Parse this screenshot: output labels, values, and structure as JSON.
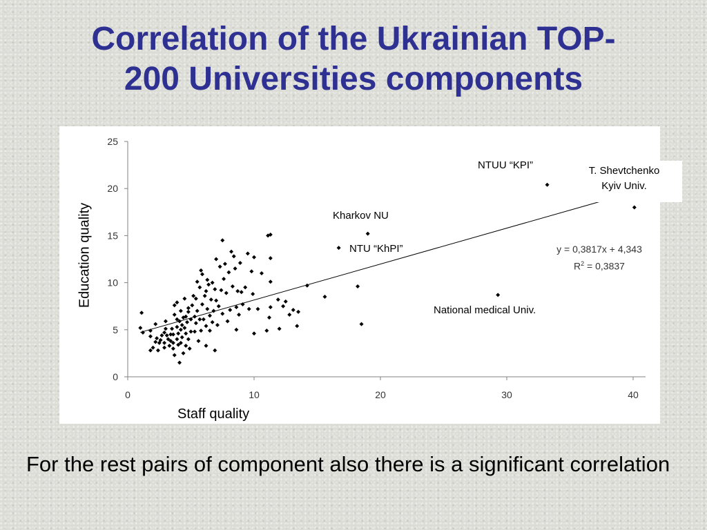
{
  "slide": {
    "title_line1": "Correlation of the Ukrainian TOP-",
    "title_line2": "200 Universities components",
    "footer_text": "For the rest pairs of component also there is a significant correlation"
  },
  "chart_data": {
    "type": "scatter",
    "title": "",
    "xlabel": "Staff quality",
    "ylabel": "Education quality",
    "xlim": [
      0,
      40
    ],
    "ylim": [
      0,
      25
    ],
    "xticks": [
      0,
      10,
      20,
      30,
      40
    ],
    "yticks": [
      0,
      5,
      10,
      15,
      20,
      25
    ],
    "grid": false,
    "point_color": "#000000",
    "trendline": {
      "slope": 0.3817,
      "intercept": 4.343,
      "x_range": [
        1,
        40
      ],
      "equation_text": "y = 0,3817x + 4,343",
      "r2_prefix": "R",
      "r2_sup": "2",
      "r2_value": " = 0,3837"
    },
    "annotations": {
      "kpi": "NTUU “KPI”",
      "shevchenko_line1": "T. Shevtchenko",
      "shevchenko_line2": "Kyiv  Univ.",
      "kharkov": "Kharkov NU",
      "khpi": "NTU “KhPI”",
      "medical": "National medical Univ."
    },
    "points": [
      [
        1.1,
        6.8
      ],
      [
        1.0,
        5.2
      ],
      [
        1.2,
        4.7
      ],
      [
        1.8,
        4.9
      ],
      [
        1.8,
        4.3
      ],
      [
        1.8,
        2.8
      ],
      [
        2.0,
        3.1
      ],
      [
        2.2,
        3.7
      ],
      [
        2.3,
        4.1
      ],
      [
        2.2,
        5.6
      ],
      [
        2.5,
        3.6
      ],
      [
        2.4,
        2.8
      ],
      [
        2.6,
        3.9
      ],
      [
        2.7,
        4.4
      ],
      [
        2.9,
        4.7
      ],
      [
        2.9,
        3.6
      ],
      [
        2.9,
        3.1
      ],
      [
        3.0,
        5.1
      ],
      [
        3.0,
        5.9
      ],
      [
        3.1,
        4.4
      ],
      [
        3.2,
        4.0
      ],
      [
        3.3,
        3.3
      ],
      [
        3.4,
        4.5
      ],
      [
        3.4,
        3.8
      ],
      [
        3.5,
        5.1
      ],
      [
        3.6,
        4.5
      ],
      [
        3.6,
        3.6
      ],
      [
        3.6,
        3.0
      ],
      [
        3.7,
        6.6
      ],
      [
        3.7,
        7.6
      ],
      [
        3.7,
        2.3
      ],
      [
        3.9,
        4.0
      ],
      [
        3.9,
        5.3
      ],
      [
        3.9,
        6.1
      ],
      [
        3.9,
        7.9
      ],
      [
        4.0,
        3.4
      ],
      [
        4.0,
        4.6
      ],
      [
        4.1,
        5.9
      ],
      [
        4.1,
        1.5
      ],
      [
        4.2,
        7.0
      ],
      [
        4.2,
        5.0
      ],
      [
        4.2,
        3.6
      ],
      [
        4.3,
        4.2
      ],
      [
        4.3,
        5.5
      ],
      [
        4.4,
        6.3
      ],
      [
        4.4,
        2.5
      ],
      [
        4.5,
        5.2
      ],
      [
        4.5,
        8.3
      ],
      [
        4.6,
        4.6
      ],
      [
        4.6,
        6.4
      ],
      [
        4.6,
        3.3
      ],
      [
        4.7,
        5.8
      ],
      [
        4.8,
        6.9
      ],
      [
        4.8,
        4.0
      ],
      [
        4.8,
        7.3
      ],
      [
        4.9,
        3.0
      ],
      [
        5.0,
        6.1
      ],
      [
        5.0,
        4.8
      ],
      [
        5.1,
        7.6
      ],
      [
        5.2,
        8.6
      ],
      [
        5.3,
        6.4
      ],
      [
        5.3,
        4.8
      ],
      [
        5.4,
        5.7
      ],
      [
        5.4,
        8.3
      ],
      [
        5.5,
        7.0
      ],
      [
        5.5,
        10.1
      ],
      [
        5.6,
        3.8
      ],
      [
        5.7,
        9.5
      ],
      [
        5.7,
        6.1
      ],
      [
        5.8,
        11.3
      ],
      [
        5.8,
        4.9
      ],
      [
        5.9,
        10.9
      ],
      [
        5.9,
        7.7
      ],
      [
        6.0,
        6.1
      ],
      [
        6.1,
        8.6
      ],
      [
        6.2,
        9.1
      ],
      [
        6.2,
        5.4
      ],
      [
        6.2,
        3.3
      ],
      [
        6.3,
        10.3
      ],
      [
        6.3,
        7.2
      ],
      [
        6.4,
        9.8
      ],
      [
        6.5,
        6.5
      ],
      [
        6.5,
        4.9
      ],
      [
        6.6,
        8.2
      ],
      [
        6.7,
        5.8
      ],
      [
        6.7,
        10.0
      ],
      [
        6.8,
        7.0
      ],
      [
        6.9,
        9.3
      ],
      [
        6.9,
        2.8
      ],
      [
        7.0,
        12.5
      ],
      [
        7.0,
        8.1
      ],
      [
        7.1,
        5.5
      ],
      [
        7.2,
        7.5
      ],
      [
        7.3,
        11.7
      ],
      [
        7.4,
        9.2
      ],
      [
        7.5,
        14.5
      ],
      [
        7.5,
        6.7
      ],
      [
        7.6,
        10.4
      ],
      [
        7.7,
        12.0
      ],
      [
        7.8,
        8.9
      ],
      [
        7.9,
        5.9
      ],
      [
        8.0,
        11.1
      ],
      [
        8.1,
        7.1
      ],
      [
        8.2,
        13.3
      ],
      [
        8.3,
        9.6
      ],
      [
        8.4,
        12.8
      ],
      [
        8.5,
        11.5
      ],
      [
        8.6,
        5.0
      ],
      [
        8.6,
        7.4
      ],
      [
        8.7,
        9.1
      ],
      [
        8.8,
        6.6
      ],
      [
        8.9,
        12.1
      ],
      [
        9.0,
        9.0
      ],
      [
        9.1,
        7.7
      ],
      [
        9.3,
        9.5
      ],
      [
        9.5,
        13.1
      ],
      [
        9.6,
        7.2
      ],
      [
        9.8,
        11.2
      ],
      [
        9.9,
        8.8
      ],
      [
        10.0,
        12.7
      ],
      [
        10.0,
        4.6
      ],
      [
        10.3,
        7.2
      ],
      [
        10.6,
        11.0
      ],
      [
        11.0,
        4.9
      ],
      [
        11.1,
        15.0
      ],
      [
        11.2,
        6.3
      ],
      [
        11.3,
        15.1
      ],
      [
        11.3,
        10.1
      ],
      [
        11.3,
        12.6
      ],
      [
        11.3,
        7.4
      ],
      [
        11.9,
        8.2
      ],
      [
        12.0,
        5.1
      ],
      [
        12.3,
        7.5
      ],
      [
        12.5,
        8.0
      ],
      [
        12.8,
        6.6
      ],
      [
        13.1,
        7.1
      ],
      [
        13.4,
        5.4
      ],
      [
        13.5,
        6.9
      ],
      [
        14.2,
        9.7
      ],
      [
        15.6,
        8.5
      ],
      [
        16.7,
        13.7
      ],
      [
        18.2,
        9.6
      ],
      [
        18.5,
        5.6
      ],
      [
        19.0,
        15.2
      ],
      [
        29.3,
        8.7
      ],
      [
        33.2,
        20.4
      ],
      [
        40.1,
        18.0
      ]
    ]
  }
}
